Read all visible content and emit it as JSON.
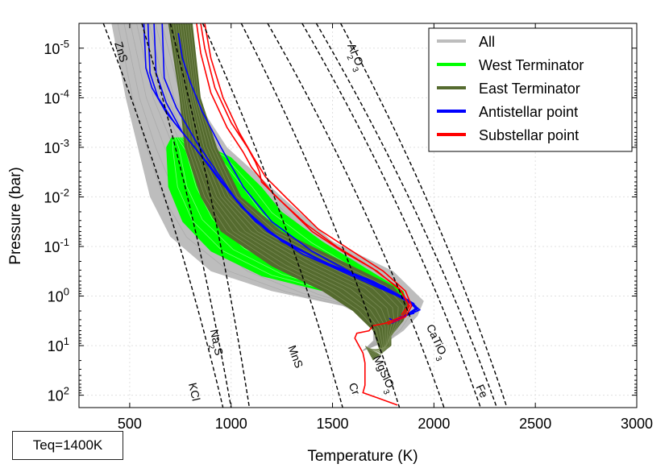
{
  "chart_data": {
    "type": "line",
    "title": "",
    "xlabel": "Temperature (K)",
    "ylabel": "Pressure (bar)",
    "xlim": [
      250,
      3000
    ],
    "ylim_log10": [
      -5.5,
      2.25
    ],
    "x_ticks": [
      500,
      1000,
      1500,
      2000,
      2500,
      3000
    ],
    "x_tick_labels": [
      "500",
      "1000",
      "1500",
      "2000",
      "2500",
      "3000"
    ],
    "y_ticks_log10": [
      -5,
      -4,
      -3,
      -2,
      -1,
      0,
      1,
      2
    ],
    "y_tick_labels": [
      "10-5",
      "10-4",
      "10-3",
      "10-2",
      "10-1",
      "100",
      "101",
      "102"
    ],
    "grid": true,
    "legend": {
      "placement": "top-right",
      "entries": [
        {
          "name": "All",
          "color": "#bdbdbd"
        },
        {
          "name": "West Terminator",
          "color": "#00ff00"
        },
        {
          "name": "East Terminator",
          "color": "#556b2f"
        },
        {
          "name": "Antistellar point",
          "color": "#0000ff"
        },
        {
          "name": "Substellar point",
          "color": "#ff0000"
        }
      ]
    },
    "condensation_curves": [
      {
        "label": "ZnS",
        "points": [
          [
            370,
            -5.5
          ],
          [
            960,
            2.25
          ]
        ]
      },
      {
        "label": "KCl",
        "points": [
          [
            560,
            -5.5
          ],
          [
            1000,
            2.25
          ]
        ]
      },
      {
        "label": "Na2S",
        "points": [
          [
            700,
            -5.5
          ],
          [
            1090,
            2.25
          ]
        ]
      },
      {
        "label": "MnS",
        "points": [
          [
            860,
            -5.5
          ],
          [
            1550,
            2.25
          ]
        ]
      },
      {
        "label": "Cr",
        "points": [
          [
            1050,
            -5.5
          ],
          [
            1830,
            2.25
          ]
        ]
      },
      {
        "label": "MgSiO3",
        "points": [
          [
            1180,
            -5.5
          ],
          [
            2050,
            2.25
          ]
        ]
      },
      {
        "label": "CaTiO3",
        "points": [
          [
            1350,
            -5.5
          ],
          [
            2230,
            2.25
          ]
        ]
      },
      {
        "label": "Fe",
        "points": [
          [
            1420,
            -5.5
          ],
          [
            2310,
            2.25
          ]
        ]
      },
      {
        "label": "Al2O3",
        "points": [
          [
            1540,
            -5.5
          ],
          [
            2360,
            2.25
          ]
        ]
      }
    ],
    "series": [
      {
        "name": "All",
        "color": "#bdbdbd",
        "band": true,
        "left": [
          [
            410,
            -5.5
          ],
          [
            480,
            -4.0
          ],
          [
            540,
            -3.0
          ],
          [
            600,
            -2.0
          ],
          [
            700,
            -1.2
          ],
          [
            900,
            -0.5
          ],
          [
            1200,
            -0.1
          ],
          [
            1550,
            0.2
          ],
          [
            1700,
            0.5
          ],
          [
            1700,
            0.9
          ],
          [
            1650,
            1.1
          ]
        ],
        "right": [
          [
            720,
            -5.5
          ],
          [
            820,
            -4.0
          ],
          [
            980,
            -3.0
          ],
          [
            1250,
            -2.0
          ],
          [
            1500,
            -1.1
          ],
          [
            1800,
            -0.5
          ],
          [
            1950,
            0.1
          ],
          [
            1920,
            0.4
          ],
          [
            1850,
            0.7
          ],
          [
            1780,
            0.9
          ],
          [
            1650,
            1.1
          ]
        ]
      },
      {
        "name": "West Terminator",
        "color": "#00ff00",
        "band": true,
        "left": [
          [
            705,
            -3.2
          ],
          [
            680,
            -3.0
          ],
          [
            690,
            -2.2
          ],
          [
            760,
            -1.5
          ],
          [
            900,
            -0.9
          ],
          [
            1150,
            -0.4
          ],
          [
            1450,
            -0.1
          ],
          [
            1700,
            0.3
          ],
          [
            1700,
            0.6
          ],
          [
            1720,
            0.5
          ]
        ],
        "right": [
          [
            800,
            -3.2
          ],
          [
            1000,
            -2.8
          ],
          [
            1150,
            -2.2
          ],
          [
            1250,
            -1.7
          ],
          [
            1450,
            -1.1
          ],
          [
            1650,
            -0.6
          ],
          [
            1850,
            -0.1
          ],
          [
            1870,
            0.2
          ],
          [
            1800,
            0.4
          ],
          [
            1720,
            0.5
          ]
        ]
      },
      {
        "name": "East Terminator",
        "color": "#556b2f",
        "band": true,
        "left": [
          [
            690,
            -5.5
          ],
          [
            745,
            -4.0
          ],
          [
            770,
            -3.0
          ],
          [
            850,
            -2.0
          ],
          [
            950,
            -1.3
          ],
          [
            1200,
            -0.6
          ],
          [
            1450,
            -0.1
          ],
          [
            1600,
            0.3
          ],
          [
            1700,
            0.7
          ],
          [
            1740,
            1.2
          ],
          [
            1700,
            1.1
          ],
          [
            1660,
            1.0
          ]
        ],
        "right": [
          [
            810,
            -5.5
          ],
          [
            850,
            -4.0
          ],
          [
            930,
            -3.0
          ],
          [
            1050,
            -2.0
          ],
          [
            1250,
            -1.3
          ],
          [
            1550,
            -0.7
          ],
          [
            1800,
            -0.2
          ],
          [
            1880,
            0.2
          ],
          [
            1850,
            0.5
          ],
          [
            1790,
            0.8
          ],
          [
            1790,
            1.0
          ],
          [
            1700,
            1.3
          ],
          [
            1660,
            1.0
          ]
        ]
      },
      {
        "name": "Antistellar point",
        "color": "#0000ff",
        "lines": [
          [
            [
              590,
              -5.5
            ],
            [
              600,
              -4.5
            ],
            [
              640,
              -4.0
            ],
            [
              720,
              -3.5
            ],
            [
              820,
              -3.0
            ],
            [
              950,
              -2.3
            ],
            [
              1080,
              -1.7
            ],
            [
              1250,
              -1.1
            ],
            [
              1500,
              -0.6
            ],
            [
              1750,
              -0.2
            ],
            [
              1880,
              0.1
            ],
            [
              1930,
              0.28
            ],
            [
              1880,
              0.35
            ],
            [
              1800,
              0.5
            ],
            [
              1780,
              0.45
            ]
          ],
          [
            [
              620,
              -5.5
            ],
            [
              630,
              -4.5
            ],
            [
              680,
              -3.9
            ],
            [
              760,
              -3.3
            ],
            [
              860,
              -2.8
            ],
            [
              990,
              -2.1
            ],
            [
              1120,
              -1.5
            ],
            [
              1300,
              -1.0
            ],
            [
              1560,
              -0.5
            ],
            [
              1790,
              -0.1
            ],
            [
              1900,
              0.15
            ],
            [
              1920,
              0.3
            ],
            [
              1860,
              0.4
            ],
            [
              1820,
              0.5
            ]
          ],
          [
            [
              570,
              -5.5
            ],
            [
              580,
              -4.6
            ],
            [
              610,
              -4.2
            ],
            [
              680,
              -3.7
            ],
            [
              780,
              -3.2
            ],
            [
              900,
              -2.6
            ],
            [
              1030,
              -1.9
            ],
            [
              1200,
              -1.25
            ],
            [
              1450,
              -0.7
            ],
            [
              1700,
              -0.3
            ],
            [
              1860,
              0.05
            ],
            [
              1910,
              0.25
            ],
            [
              1840,
              0.45
            ],
            [
              1790,
              0.55
            ]
          ],
          [
            [
              660,
              -5.5
            ],
            [
              670,
              -4.4
            ],
            [
              730,
              -3.8
            ],
            [
              830,
              -3.1
            ],
            [
              930,
              -2.5
            ],
            [
              1050,
              -1.8
            ],
            [
              1180,
              -1.3
            ],
            [
              1350,
              -0.85
            ],
            [
              1600,
              -0.4
            ],
            [
              1820,
              0.0
            ],
            [
              1910,
              0.2
            ],
            [
              1900,
              0.35
            ],
            [
              1830,
              0.42
            ]
          ],
          [
            [
              740,
              -5.3
            ],
            [
              760,
              -4.8
            ],
            [
              800,
              -4.3
            ],
            [
              860,
              -3.7
            ],
            [
              950,
              -3.0
            ],
            [
              1060,
              -2.2
            ],
            [
              1200,
              -1.5
            ],
            [
              1400,
              -0.9
            ],
            [
              1650,
              -0.35
            ],
            [
              1850,
              0.05
            ],
            [
              1920,
              0.25
            ],
            [
              1870,
              0.38
            ],
            [
              1820,
              0.46
            ]
          ]
        ]
      },
      {
        "name": "Substellar point",
        "color": "#ff0000",
        "lines": [
          [
            [
              850,
              -5.5
            ],
            [
              870,
              -5.0
            ],
            [
              920,
              -4.2
            ],
            [
              1000,
              -3.5
            ],
            [
              1080,
              -3.0
            ],
            [
              1120,
              -2.7
            ],
            [
              1140,
              -2.5
            ],
            [
              1150,
              -2.3
            ],
            [
              1250,
              -1.9
            ],
            [
              1400,
              -1.3
            ],
            [
              1550,
              -0.9
            ],
            [
              1720,
              -0.5
            ],
            [
              1840,
              -0.1
            ],
            [
              1880,
              0.2
            ],
            [
              1850,
              0.4
            ],
            [
              1760,
              0.55
            ],
            [
              1700,
              0.6
            ],
            [
              1680,
              0.7
            ],
            [
              1620,
              0.75
            ],
            [
              1610,
              0.85
            ],
            [
              1630,
              1.0
            ],
            [
              1650,
              1.15
            ],
            [
              1660,
              1.35
            ],
            [
              1660,
              1.6
            ],
            [
              1660,
              1.8
            ],
            [
              1650,
              1.95
            ],
            [
              1720,
              2.05
            ],
            [
              1820,
              2.2
            ]
          ],
          [
            [
              870,
              -5.5
            ],
            [
              900,
              -4.8
            ],
            [
              960,
              -4.0
            ],
            [
              1040,
              -3.3
            ],
            [
              1110,
              -2.8
            ],
            [
              1170,
              -2.4
            ],
            [
              1280,
              -1.95
            ],
            [
              1430,
              -1.35
            ],
            [
              1580,
              -0.95
            ],
            [
              1750,
              -0.5
            ],
            [
              1860,
              -0.1
            ],
            [
              1890,
              0.2
            ],
            [
              1860,
              0.42
            ],
            [
              1770,
              0.57
            ]
          ],
          [
            [
              830,
              -5.5
            ],
            [
              850,
              -4.9
            ],
            [
              900,
              -4.1
            ],
            [
              980,
              -3.4
            ],
            [
              1060,
              -2.9
            ],
            [
              1100,
              -2.6
            ],
            [
              1210,
              -2.05
            ],
            [
              1370,
              -1.45
            ],
            [
              1520,
              -1.0
            ],
            [
              1700,
              -0.55
            ],
            [
              1830,
              -0.15
            ],
            [
              1875,
              0.18
            ],
            [
              1840,
              0.38
            ]
          ]
        ]
      }
    ]
  },
  "annotation": {
    "text": "Teq=1400K"
  }
}
